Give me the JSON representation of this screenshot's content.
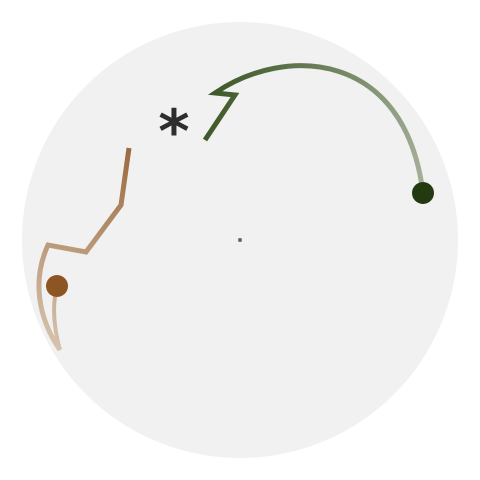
{
  "arena": {
    "background_color": "#f1f1f2",
    "center_dot_color": "#666666"
  },
  "marker": {
    "symbol": "*",
    "color": "#2e2e2e"
  },
  "players": [
    {
      "id": "green",
      "head_color": "#233a10",
      "trail_dark": "#3f5a2a",
      "trail_light": "#a6b09a"
    },
    {
      "id": "brown",
      "head_color": "#8e5524",
      "trail_dark": "#9b6a3f",
      "trail_light": "#d6c3ad"
    }
  ]
}
